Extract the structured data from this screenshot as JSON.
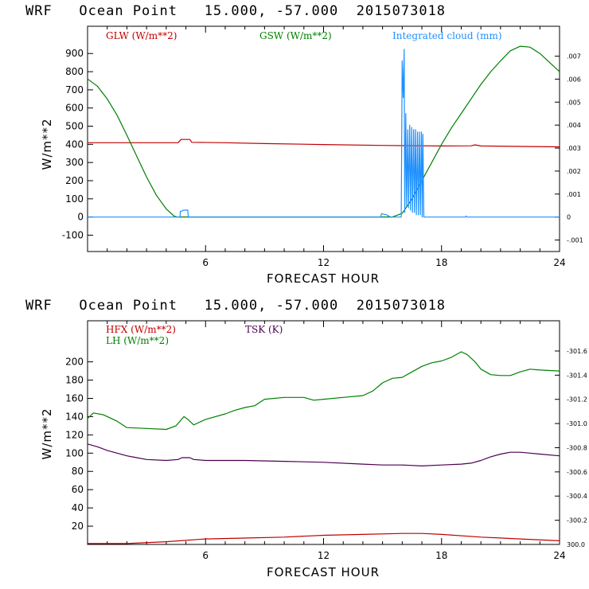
{
  "chart_data": [
    {
      "type": "line",
      "title": "WRF   Ocean Point   15.000, -57.000  2015073018",
      "xlabel": "FORECAST HOUR",
      "ylabel": "W/m**2",
      "xlim": [
        0,
        24
      ],
      "ylim": [
        -190,
        1050
      ],
      "x_ticks": [
        "6",
        "12",
        "18",
        "24"
      ],
      "y_ticks": [
        "-100",
        "0",
        "100",
        "200",
        "300",
        "400",
        "500",
        "600",
        "700",
        "800",
        "900"
      ],
      "right_ylim": [
        -0.0015,
        0.0083
      ],
      "right_ticks": [
        "-.001",
        "0",
        ".001",
        ".002",
        ".003",
        ".004",
        ".005",
        ".006",
        ".007"
      ],
      "grid": false,
      "series": [
        {
          "name": "GLW (W/m**2)",
          "color": "#c00000",
          "axis": "left",
          "points": [
            [
              0,
              409
            ],
            [
              4.6,
              409
            ],
            [
              4.75,
              427
            ],
            [
              5.2,
              427
            ],
            [
              5.3,
              411
            ],
            [
              7,
              409
            ],
            [
              9,
              404
            ],
            [
              12,
              399
            ],
            [
              15,
              394
            ],
            [
              18,
              391
            ],
            [
              19.5,
              392
            ],
            [
              19.7,
              397
            ],
            [
              20,
              391
            ],
            [
              24,
              386
            ]
          ]
        },
        {
          "name": "GSW (W/m**2)",
          "color": "#008000",
          "axis": "left",
          "points": [
            [
              0,
              760
            ],
            [
              0.5,
              720
            ],
            [
              1,
              650
            ],
            [
              1.5,
              560
            ],
            [
              2,
              450
            ],
            [
              2.5,
              335
            ],
            [
              3,
              220
            ],
            [
              3.5,
              120
            ],
            [
              4,
              45
            ],
            [
              4.4,
              5
            ],
            [
              4.55,
              0
            ],
            [
              15.5,
              0
            ],
            [
              16,
              20
            ],
            [
              16.5,
              100
            ],
            [
              17,
              200
            ],
            [
              17.5,
              300
            ],
            [
              18,
              400
            ],
            [
              18.5,
              490
            ],
            [
              19,
              570
            ],
            [
              19.5,
              650
            ],
            [
              20,
              730
            ],
            [
              20.5,
              800
            ],
            [
              21,
              860
            ],
            [
              21.5,
              915
            ],
            [
              22,
              940
            ],
            [
              22.5,
              935
            ],
            [
              23,
              900
            ],
            [
              23.5,
              850
            ],
            [
              24,
              800
            ]
          ]
        },
        {
          "name": "Integrated cloud (mm)",
          "color": "#1e90ff",
          "axis": "right",
          "points": [
            [
              0,
              0
            ],
            [
              4.7,
              0
            ],
            [
              4.72,
              0.00025
            ],
            [
              4.8,
              0.00026
            ],
            [
              4.85,
              0.0003
            ],
            [
              5.1,
              0.0003
            ],
            [
              5.12,
              0
            ],
            [
              14.9,
              0
            ],
            [
              14.95,
              0.00015
            ],
            [
              15.2,
              0.0001
            ],
            [
              15.3,
              5e-05
            ],
            [
              15.4,
              0
            ],
            [
              15.95,
              0
            ],
            [
              16,
              0.0068
            ],
            [
              16.05,
              0.0052
            ],
            [
              16.1,
              0.0073
            ],
            [
              16.13,
              0.0002
            ],
            [
              16.18,
              0.0045
            ],
            [
              16.22,
              0.0005
            ],
            [
              16.28,
              0.0038
            ],
            [
              16.32,
              0.0004
            ],
            [
              16.38,
              0.004
            ],
            [
              16.42,
              0.0003
            ],
            [
              16.48,
              0.0039
            ],
            [
              16.52,
              0.0002
            ],
            [
              16.58,
              0.0038
            ],
            [
              16.62,
              0.0002
            ],
            [
              16.68,
              0.0038
            ],
            [
              16.72,
              0.0001
            ],
            [
              16.78,
              0.0037
            ],
            [
              16.82,
              0.0001
            ],
            [
              16.88,
              0.0037
            ],
            [
              16.92,
              0.0001
            ],
            [
              16.98,
              0.0037
            ],
            [
              17.02,
              0
            ],
            [
              17.05,
              0.0036
            ],
            [
              17.1,
              0
            ],
            [
              19.2,
              0
            ],
            [
              19.25,
              4e-05
            ],
            [
              19.3,
              0
            ],
            [
              24,
              0
            ]
          ]
        }
      ]
    },
    {
      "type": "line",
      "title": "WRF   Ocean Point   15.000, -57.000  2015073018",
      "xlabel": "FORECAST HOUR",
      "ylabel": "W/m**2",
      "xlim": [
        0,
        24
      ],
      "ylim": [
        0,
        245
      ],
      "x_ticks": [
        "6",
        "12",
        "18",
        "24"
      ],
      "y_ticks": [
        "20",
        "40",
        "60",
        "80",
        "100",
        "120",
        "140",
        "160",
        "180",
        "200"
      ],
      "right_ylim": [
        300.0,
        301.85
      ],
      "right_ticks": [
        "300.0",
        "-300.2",
        "-300.4",
        "-300.6",
        "-300.8",
        "-301.0",
        "-301.2",
        "-301.4",
        "-301.6"
      ],
      "grid": false,
      "series": [
        {
          "name": "HFX (W/m**2)",
          "color": "#c00000",
          "axis": "left",
          "points": [
            [
              0,
              1
            ],
            [
              2,
              1
            ],
            [
              4,
              3
            ],
            [
              6,
              6
            ],
            [
              8,
              7
            ],
            [
              10,
              8
            ],
            [
              12,
              10
            ],
            [
              14,
              11
            ],
            [
              16,
              12
            ],
            [
              17,
              12
            ],
            [
              18,
              11
            ],
            [
              20,
              8
            ],
            [
              22,
              6
            ],
            [
              24,
              4
            ]
          ]
        },
        {
          "name": "LH (W/m**2)",
          "color": "#008000",
          "axis": "left",
          "points": [
            [
              0,
              138
            ],
            [
              0.3,
              144
            ],
            [
              0.8,
              142
            ],
            [
              1.5,
              135
            ],
            [
              2,
              128
            ],
            [
              3,
              127
            ],
            [
              4,
              126
            ],
            [
              4.5,
              130
            ],
            [
              4.9,
              140
            ],
            [
              5.1,
              137
            ],
            [
              5.4,
              131
            ],
            [
              5.6,
              133
            ],
            [
              6,
              137
            ],
            [
              7,
              143
            ],
            [
              7.5,
              147
            ],
            [
              8,
              150
            ],
            [
              8.5,
              152
            ],
            [
              9,
              159
            ],
            [
              10,
              161
            ],
            [
              11,
              161
            ],
            [
              11.5,
              158
            ],
            [
              12,
              159
            ],
            [
              13,
              161
            ],
            [
              14,
              163
            ],
            [
              14.5,
              168
            ],
            [
              15,
              177
            ],
            [
              15.5,
              182
            ],
            [
              16,
              183
            ],
            [
              16.5,
              189
            ],
            [
              17,
              195
            ],
            [
              17.5,
              199
            ],
            [
              18,
              201
            ],
            [
              18.5,
              205
            ],
            [
              19,
              211
            ],
            [
              19.3,
              208
            ],
            [
              19.7,
              200
            ],
            [
              20,
              192
            ],
            [
              20.5,
              186
            ],
            [
              21,
              185
            ],
            [
              21.5,
              185
            ],
            [
              22,
              189
            ],
            [
              22.5,
              192
            ],
            [
              23,
              191
            ],
            [
              24,
              190
            ]
          ]
        },
        {
          "name": "TSK (K)",
          "color": "#4b0050",
          "axis": "left",
          "points": [
            [
              0,
              110
            ],
            [
              0.5,
              107
            ],
            [
              1,
              103
            ],
            [
              1.5,
              100
            ],
            [
              2,
              97
            ],
            [
              2.5,
              95
            ],
            [
              3,
              93
            ],
            [
              4,
              92
            ],
            [
              4.6,
              93
            ],
            [
              4.8,
              95
            ],
            [
              5.2,
              95
            ],
            [
              5.4,
              93
            ],
            [
              6,
              92
            ],
            [
              8,
              92
            ],
            [
              10,
              91
            ],
            [
              12,
              90
            ],
            [
              14,
              88
            ],
            [
              15,
              87
            ],
            [
              16,
              87
            ],
            [
              17,
              86
            ],
            [
              18,
              87
            ],
            [
              19,
              88
            ],
            [
              19.5,
              89
            ],
            [
              20,
              92
            ],
            [
              20.5,
              96
            ],
            [
              21,
              99
            ],
            [
              21.5,
              101
            ],
            [
              22,
              101
            ],
            [
              22.5,
              100
            ],
            [
              23,
              99
            ],
            [
              24,
              97
            ]
          ]
        }
      ]
    }
  ]
}
